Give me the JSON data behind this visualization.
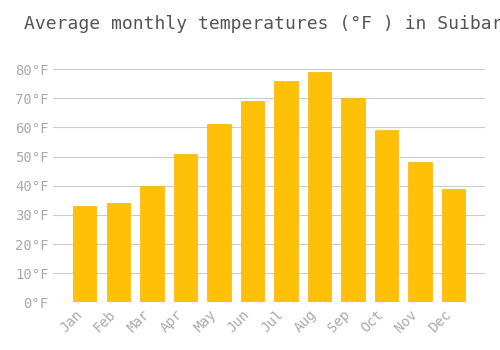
{
  "title": "Average monthly temperatures (°F ) in Suibara",
  "months": [
    "Jan",
    "Feb",
    "Mar",
    "Apr",
    "May",
    "Jun",
    "Jul",
    "Aug",
    "Sep",
    "Oct",
    "Nov",
    "Dec"
  ],
  "values": [
    33,
    34,
    40,
    51,
    61,
    69,
    76,
    79,
    70,
    59,
    48,
    39
  ],
  "bar_color": "#FFC107",
  "bar_edge_color": "#FFB300",
  "background_color": "#FFFFFF",
  "grid_color": "#CCCCCC",
  "text_color": "#AAAAAA",
  "ylim": [
    0,
    88
  ],
  "yticks": [
    0,
    10,
    20,
    30,
    40,
    50,
    60,
    70,
    80
  ],
  "title_fontsize": 13,
  "tick_fontsize": 10
}
